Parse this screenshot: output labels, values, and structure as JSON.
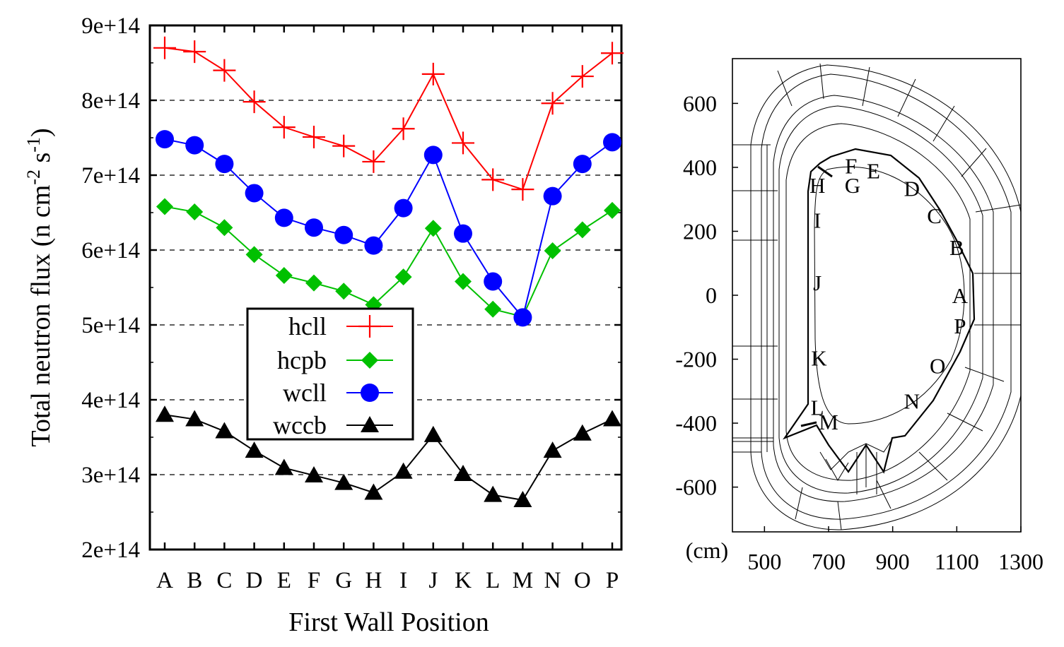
{
  "chart_data": [
    {
      "type": "line",
      "ylabel": "Total neutron flux (n cm",
      "ylabel_sup1": "-2",
      "ylabel_mid": " s",
      "ylabel_sup2": "-1",
      "ylabel_end": ")",
      "xlabel": "First Wall Position",
      "ylim": [
        200000000000000.0,
        900000000000000.0
      ],
      "y_ticks": [
        {
          "value": 200000000000000.0,
          "label": "2e+14"
        },
        {
          "value": 300000000000000.0,
          "label": "3e+14"
        },
        {
          "value": 400000000000000.0,
          "label": "4e+14"
        },
        {
          "value": 500000000000000.0,
          "label": "5e+14"
        },
        {
          "value": 600000000000000.0,
          "label": "6e+14"
        },
        {
          "value": 700000000000000.0,
          "label": "7e+14"
        },
        {
          "value": 800000000000000.0,
          "label": "8e+14"
        },
        {
          "value": 900000000000000.0,
          "label": "9e+14"
        }
      ],
      "grid": "horizontal dashed",
      "legend_position": "center-bottom",
      "categories": [
        "A",
        "B",
        "C",
        "D",
        "E",
        "F",
        "G",
        "H",
        "I",
        "J",
        "K",
        "L",
        "M",
        "N",
        "O",
        "P"
      ],
      "series": [
        {
          "name": "hcll",
          "color": "#ff0000",
          "marker": "plus",
          "values": [
            870000000000000.0,
            865000000000000.0,
            840000000000000.0,
            798000000000000.0,
            764000000000000.0,
            751000000000000.0,
            739000000000000.0,
            718000000000000.0,
            762000000000000.0,
            835000000000000.0,
            743000000000000.0,
            694000000000000.0,
            681000000000000.0,
            796000000000000.0,
            832000000000000.0,
            863000000000000.0
          ]
        },
        {
          "name": "hcpb",
          "color": "#00c000",
          "marker": "diamond",
          "values": [
            658000000000000.0,
            651000000000000.0,
            630000000000000.0,
            594000000000000.0,
            566000000000000.0,
            556000000000000.0,
            545000000000000.0,
            527000000000000.0,
            564000000000000.0,
            629000000000000.0,
            558000000000000.0,
            521000000000000.0,
            511000000000000.0,
            599000000000000.0,
            627000000000000.0,
            653000000000000.0
          ]
        },
        {
          "name": "wcll",
          "color": "#0000ff",
          "marker": "circle",
          "values": [
            748000000000000.0,
            740000000000000.0,
            715000000000000.0,
            676000000000000.0,
            643000000000000.0,
            630000000000000.0,
            620000000000000.0,
            606000000000000.0,
            656000000000000.0,
            727000000000000.0,
            622000000000000.0,
            558000000000000.0,
            510000000000000.0,
            672000000000000.0,
            715000000000000.0,
            744000000000000.0
          ]
        },
        {
          "name": "wccb",
          "color": "#000000",
          "marker": "triangle",
          "values": [
            380000000000000.0,
            374000000000000.0,
            358000000000000.0,
            332000000000000.0,
            309000000000000.0,
            299000000000000.0,
            289000000000000.0,
            276000000000000.0,
            304000000000000.0,
            353000000000000.0,
            301000000000000.0,
            273000000000000.0,
            266000000000000.0,
            332000000000000.0,
            355000000000000.0,
            374000000000000.0
          ]
        }
      ]
    },
    {
      "type": "diagram",
      "unit_label": "(cm)",
      "x_ticks": [
        {
          "value": 500,
          "label": "500"
        },
        {
          "value": 700,
          "label": "700"
        },
        {
          "value": 900,
          "label": "900"
        },
        {
          "value": 1100,
          "label": "1100"
        },
        {
          "value": 1300,
          "label": "1300"
        }
      ],
      "y_ticks": [
        {
          "value": 600,
          "label": "600"
        },
        {
          "value": 400,
          "label": "400"
        },
        {
          "value": 200,
          "label": "200"
        },
        {
          "value": 0,
          "label": "0"
        },
        {
          "value": -200,
          "label": "-200"
        },
        {
          "value": -400,
          "label": "-400"
        },
        {
          "value": -600,
          "label": "-600"
        }
      ],
      "xlim": [
        400,
        1300
      ],
      "ylim": [
        -740,
        740
      ],
      "position_labels": [
        {
          "label": "A",
          "x": 1110,
          "y": 0
        },
        {
          "label": "B",
          "x": 1100,
          "y": 150
        },
        {
          "label": "C",
          "x": 1030,
          "y": 250
        },
        {
          "label": "D",
          "x": 960,
          "y": 335
        },
        {
          "label": "E",
          "x": 840,
          "y": 390
        },
        {
          "label": "F",
          "x": 770,
          "y": 405
        },
        {
          "label": "G",
          "x": 775,
          "y": 345
        },
        {
          "label": "H",
          "x": 665,
          "y": 345
        },
        {
          "label": "I",
          "x": 665,
          "y": 235
        },
        {
          "label": "J",
          "x": 665,
          "y": 40
        },
        {
          "label": "K",
          "x": 670,
          "y": -195
        },
        {
          "label": "L",
          "x": 665,
          "y": -350
        },
        {
          "label": "M",
          "x": 700,
          "y": -395
        },
        {
          "label": "N",
          "x": 960,
          "y": -330
        },
        {
          "label": "O",
          "x": 1040,
          "y": -220
        },
        {
          "label": "P",
          "x": 1110,
          "y": -95
        }
      ]
    }
  ]
}
